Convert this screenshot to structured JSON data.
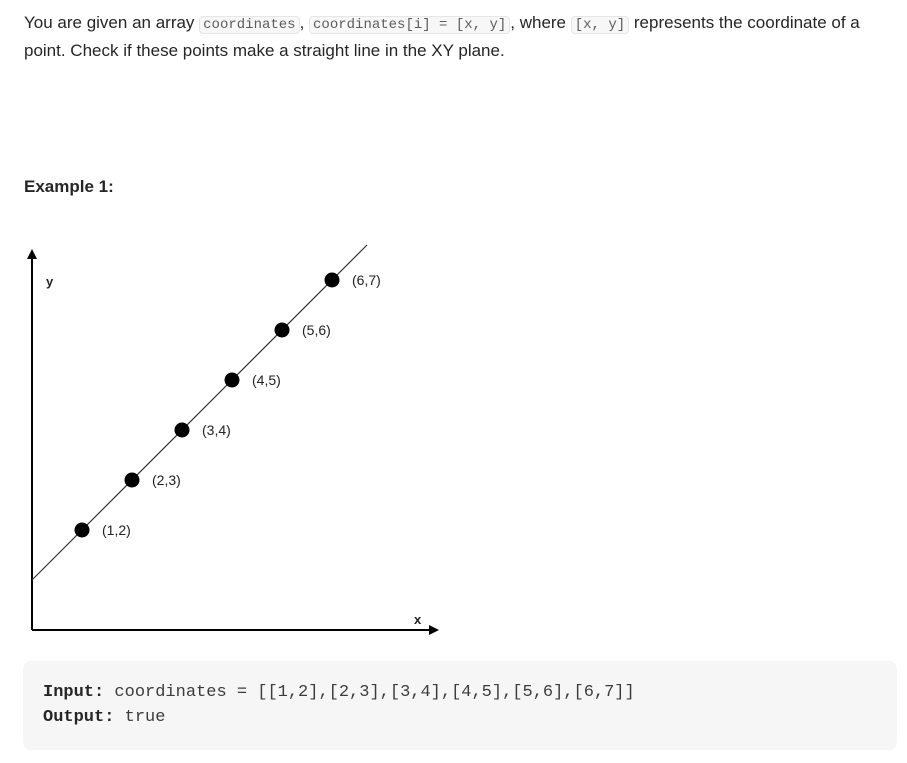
{
  "problem": {
    "t1": "You are given an array ",
    "c1": "coordinates",
    "t2": ", ",
    "c2": "coordinates[i] = [x, y]",
    "t3": ", where ",
    "c3": "[x, y]",
    "t4": " represents the coordinate of a point. Check if these points make a straight line in the XY plane."
  },
  "example": {
    "heading": "Example 1:",
    "input_label": "Input:",
    "input_value": "coordinates = [[1,2],[2,3],[3,4],[4,5],[5,6],[6,7]]",
    "output_label": "Output:",
    "output_value": "true"
  },
  "chart_data": {
    "type": "scatter",
    "xlabel": "x",
    "ylabel": "y",
    "points": [
      {
        "x": 1,
        "y": 2,
        "label": "(1,2)"
      },
      {
        "x": 2,
        "y": 3,
        "label": "(2,3)"
      },
      {
        "x": 3,
        "y": 4,
        "label": "(3,4)"
      },
      {
        "x": 4,
        "y": 5,
        "label": "(4,5)"
      },
      {
        "x": 5,
        "y": 6,
        "label": "(5,6)"
      },
      {
        "x": 6,
        "y": 7,
        "label": "(6,7)"
      }
    ],
    "line": {
      "slope": 1,
      "intercept": 1
    },
    "xlim": [
      0,
      7.6
    ],
    "ylim": [
      0,
      7.6
    ],
    "grid": false,
    "colors": {
      "point": "#000000",
      "line": "#333333",
      "axis": "#000000"
    }
  }
}
